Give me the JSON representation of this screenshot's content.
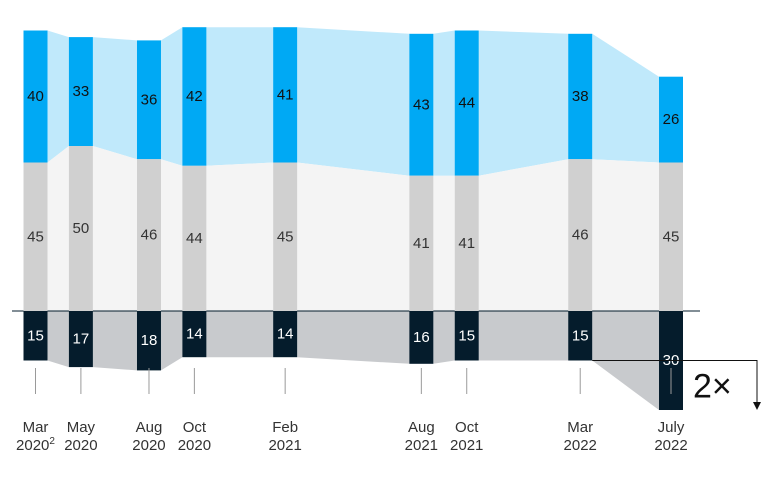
{
  "chart_data": {
    "type": "bar",
    "stacked": "diverging",
    "categories": [
      {
        "line1": "Mar",
        "line2": "2020",
        "note": "2"
      },
      {
        "line1": "May",
        "line2": "2020",
        "note": ""
      },
      {
        "line1": "Aug",
        "line2": "2020",
        "note": ""
      },
      {
        "line1": "Oct",
        "line2": "2020",
        "note": ""
      },
      {
        "line1": "Feb",
        "line2": "2021",
        "note": ""
      },
      {
        "line1": "Aug",
        "line2": "2021",
        "note": ""
      },
      {
        "line1": "Oct",
        "line2": "2021",
        "note": ""
      },
      {
        "line1": "Mar",
        "line2": "2022",
        "note": ""
      },
      {
        "line1": "July",
        "line2": "2022",
        "note": ""
      }
    ],
    "x_dates": [
      "2020-03",
      "2020-05",
      "2020-08",
      "2020-10",
      "2021-02",
      "2021-08",
      "2021-10",
      "2022-03",
      "2022-07"
    ],
    "series": [
      {
        "key": "top",
        "values": [
          40,
          33,
          36,
          42,
          41,
          43,
          44,
          38,
          26
        ],
        "color": "#00a9f4",
        "band_color": "#c0e9fb",
        "text_color": "#111111"
      },
      {
        "key": "middle",
        "values": [
          45,
          50,
          46,
          44,
          45,
          41,
          41,
          46,
          45
        ],
        "color": "#d0d0d0",
        "band_color": "#f4f4f4",
        "text_color": "#333333"
      },
      {
        "key": "bottom",
        "values": [
          15,
          17,
          18,
          14,
          14,
          16,
          15,
          15,
          30
        ],
        "color": "#051c2c",
        "band_color": "#c8cacd",
        "text_color": "#ffffff"
      }
    ],
    "annotation": {
      "text": "2×",
      "from_category": 7,
      "to_category": 8,
      "series": "bottom"
    },
    "grid": false,
    "legend": "none",
    "title": "",
    "xlabel": "",
    "ylabel": ""
  }
}
